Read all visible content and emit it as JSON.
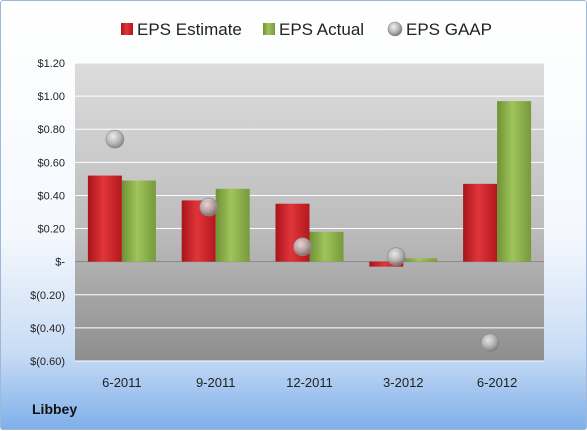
{
  "company": "Libbey",
  "colors": {
    "estimate": "#d21f24",
    "actual": "#8bb04a",
    "gaap": "#b5b5b5"
  },
  "chart_data": {
    "type": "bar",
    "title": "",
    "xlabel": "",
    "ylabel": "",
    "categories": [
      "6-2011",
      "9-2011",
      "12-2011",
      "3-2012",
      "6-2012"
    ],
    "series": [
      {
        "name": "EPS Estimate",
        "type": "bar",
        "values": [
          0.52,
          0.37,
          0.35,
          -0.03,
          0.47
        ]
      },
      {
        "name": "EPS Actual",
        "type": "bar",
        "values": [
          0.49,
          0.44,
          0.18,
          0.02,
          0.97
        ]
      },
      {
        "name": "EPS GAAP",
        "type": "scatter",
        "values": [
          0.74,
          0.33,
          0.09,
          0.03,
          -0.49
        ]
      }
    ],
    "ylim": [
      -0.6,
      1.2
    ],
    "yticks": [
      {
        "value": 1.2,
        "label": "$1.20"
      },
      {
        "value": 1.0,
        "label": "$1.00"
      },
      {
        "value": 0.8,
        "label": "$0.80"
      },
      {
        "value": 0.6,
        "label": "$0.60"
      },
      {
        "value": 0.4,
        "label": "$0.40"
      },
      {
        "value": 0.2,
        "label": "$0.20"
      },
      {
        "value": 0,
        "label": "$-"
      },
      {
        "value": -0.2,
        "label": "$(0.20)"
      },
      {
        "value": -0.4,
        "label": "$(0.40)"
      },
      {
        "value": -0.6,
        "label": "$(0.60)"
      }
    ],
    "grid": true,
    "legend": "top"
  }
}
